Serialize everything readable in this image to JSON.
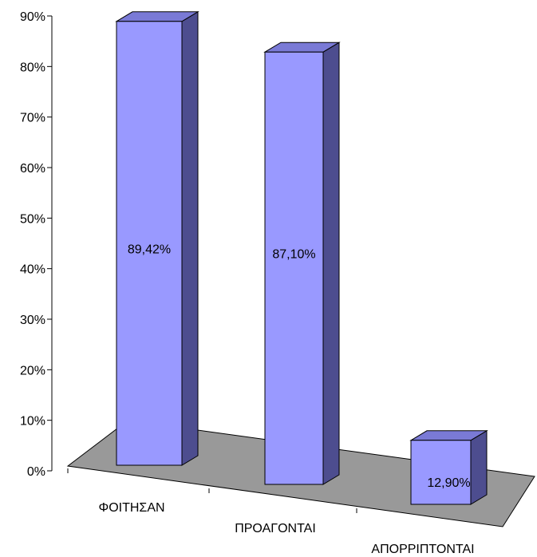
{
  "chart_data": {
    "type": "bar",
    "style": "3d-column",
    "categories": [
      "ΦΟΙΤΗΣΑΝ",
      "ΠΡΟΑΓΟΝΤΑΙ",
      "ΑΠΟΡΡΙΠΤΟΝΤΑΙ"
    ],
    "values": [
      89.42,
      87.1,
      12.9
    ],
    "data_labels": [
      "89,42%",
      "87,10%",
      "12,90%"
    ],
    "y_ticks": [
      "0%",
      "10%",
      "20%",
      "30%",
      "40%",
      "50%",
      "60%",
      "70%",
      "80%",
      "90%"
    ],
    "ylim": [
      0,
      90
    ],
    "title": "",
    "xlabel": "",
    "ylabel": "",
    "grid": false,
    "legend": "none",
    "colors": {
      "bar_front": "#9999ff",
      "bar_top": "#7a7ad6",
      "bar_side": "#4d4d8f",
      "floor": "#999999",
      "axis": "#000000"
    }
  }
}
